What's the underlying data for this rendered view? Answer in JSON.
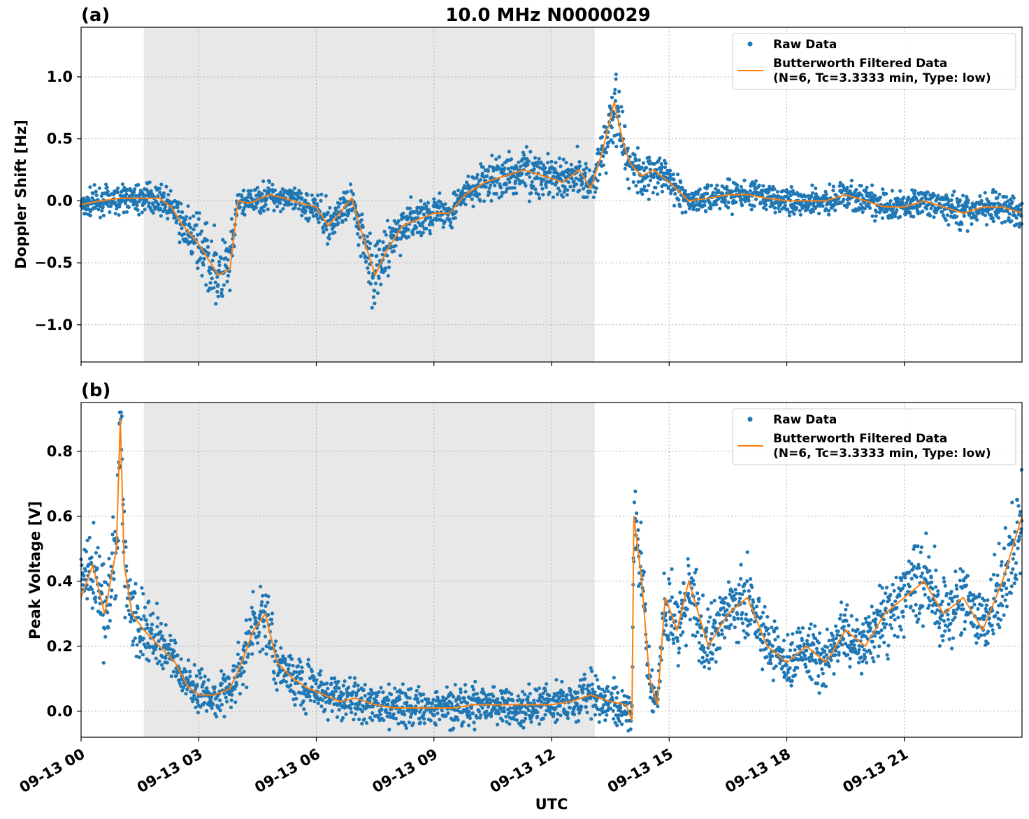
{
  "title": "10.0 MHz N0000029",
  "xlabel": "UTC",
  "legend": {
    "raw_label": "Raw Data",
    "filtered_label_line1": "Butterworth Filtered Data",
    "filtered_label_line2": "(N=6, Tc=3.3333 min, Type: low)"
  },
  "colors": {
    "raw": "#1f77b4",
    "filtered": "#ff7f0e",
    "shade": "#e8e8e8",
    "grid": "#b0b0b0"
  },
  "chart_data": [
    {
      "type": "scatter",
      "panel_label": "(a)",
      "ylabel": "Doppler Shift [Hz]",
      "x_unit": "hours UTC on 09-13",
      "xlim": [
        0,
        24
      ],
      "ylim": [
        -1.3,
        1.4
      ],
      "yticks": [
        1.0,
        0.5,
        0.0,
        -0.5,
        -1.0
      ],
      "ytick_labels": [
        "1.0",
        "0.5",
        "0.0",
        "−1.0"
      ],
      "ytick_labels_all": [
        "1.0",
        "0.5",
        "0.0",
        "−0.5",
        "−1.0"
      ],
      "grid": true,
      "legend_position": "top-right",
      "shaded_interval_hours": [
        1.6,
        13.1
      ],
      "series": [
        {
          "name": "Butterworth Filtered Data (N=6, Tc=3.3333 min, Type: low)",
          "x": [
            0,
            0.5,
            1,
            1.5,
            2,
            2.3,
            2.6,
            3,
            3.3,
            3.5,
            3.8,
            4,
            4.3,
            4.8,
            5.2,
            5.6,
            6,
            6.3,
            6.6,
            6.9,
            7.2,
            7.5,
            7.8,
            8.2,
            8.6,
            9,
            9.4,
            9.8,
            10.3,
            10.8,
            11.3,
            11.8,
            12.3,
            12.7,
            13,
            13.3,
            13.6,
            13.8,
            14,
            14.3,
            14.6,
            15,
            15.5,
            16,
            16.5,
            17,
            17.5,
            18,
            18.5,
            19,
            19.5,
            20,
            20.5,
            21,
            21.5,
            22,
            22.5,
            23,
            23.5,
            24
          ],
          "values": [
            -0.03,
            0.0,
            0.02,
            0.02,
            0.02,
            -0.05,
            -0.2,
            -0.35,
            -0.5,
            -0.6,
            -0.55,
            0.0,
            -0.02,
            0.05,
            0.02,
            -0.02,
            -0.05,
            -0.2,
            -0.1,
            0.02,
            -0.3,
            -0.6,
            -0.4,
            -0.2,
            -0.15,
            -0.1,
            -0.1,
            0.05,
            0.15,
            0.2,
            0.25,
            0.2,
            0.15,
            0.25,
            0.1,
            0.4,
            0.8,
            0.5,
            0.3,
            0.2,
            0.25,
            0.15,
            0.0,
            0.02,
            0.05,
            0.05,
            0.02,
            0.0,
            0.0,
            0.0,
            0.05,
            0.0,
            -0.05,
            -0.05,
            0.0,
            -0.05,
            -0.1,
            -0.05,
            -0.05,
            -0.1
          ]
        },
        {
          "name": "Raw Data",
          "note_spread_hz": "scatter band around filtered trace, up to about +1.25 and down to about -1.2"
        }
      ]
    },
    {
      "type": "scatter",
      "panel_label": "(b)",
      "ylabel": "Peak Voltage [V]",
      "x_unit": "hours UTC on 09-13",
      "xlim": [
        0,
        24
      ],
      "ylim": [
        -0.08,
        0.95
      ],
      "yticks": [
        0.8,
        0.6,
        0.4,
        0.2,
        0.0
      ],
      "ytick_labels_all": [
        "0.8",
        "0.6",
        "0.4",
        "0.2",
        "0.0"
      ],
      "grid": true,
      "legend_position": "top-right",
      "shaded_interval_hours": [
        1.6,
        13.1
      ],
      "xtick_labels": [
        "09-13 00",
        "09-13 03",
        "09-13 06",
        "09-13 09",
        "09-13 12",
        "09-13 15",
        "09-13 18",
        "09-13 21"
      ],
      "xtick_hours": [
        0,
        3,
        6,
        9,
        12,
        15,
        18,
        21
      ],
      "series": [
        {
          "name": "Butterworth Filtered Data (N=6, Tc=3.3333 min, Type: low)",
          "x": [
            0,
            0.3,
            0.6,
            0.9,
            1.0,
            1.1,
            1.3,
            1.6,
            2.0,
            2.4,
            2.7,
            3.0,
            3.4,
            3.8,
            4.1,
            4.4,
            4.7,
            5.0,
            5.4,
            5.8,
            6.2,
            6.6,
            7.0,
            7.5,
            8.0,
            8.5,
            9.0,
            9.5,
            10.0,
            10.5,
            11.0,
            11.5,
            12.0,
            12.5,
            13.0,
            13.5,
            13.9,
            14.05,
            14.1,
            14.3,
            14.5,
            14.7,
            14.9,
            15.2,
            15.5,
            16.0,
            16.5,
            17.0,
            17.5,
            18.0,
            18.5,
            19.0,
            19.5,
            20.0,
            20.5,
            21.0,
            21.5,
            22.0,
            22.5,
            23.0,
            23.5,
            24.0
          ],
          "values": [
            0.35,
            0.45,
            0.3,
            0.5,
            0.9,
            0.45,
            0.3,
            0.25,
            0.2,
            0.15,
            0.08,
            0.05,
            0.05,
            0.07,
            0.15,
            0.25,
            0.3,
            0.15,
            0.1,
            0.07,
            0.05,
            0.03,
            0.04,
            0.02,
            0.01,
            0.01,
            0.01,
            0.01,
            0.02,
            0.02,
            0.02,
            0.02,
            0.02,
            0.03,
            0.05,
            0.03,
            0.02,
            -0.03,
            0.6,
            0.4,
            0.1,
            0.02,
            0.35,
            0.25,
            0.4,
            0.2,
            0.3,
            0.35,
            0.2,
            0.15,
            0.2,
            0.15,
            0.25,
            0.2,
            0.3,
            0.35,
            0.4,
            0.3,
            0.35,
            0.25,
            0.4,
            0.6
          ]
        },
        {
          "name": "Raw Data",
          "note_spread_v": "scatter band around filtered trace, peaks near 0.85 at 00-01 UTC and 14-24 UTC"
        }
      ]
    }
  ]
}
